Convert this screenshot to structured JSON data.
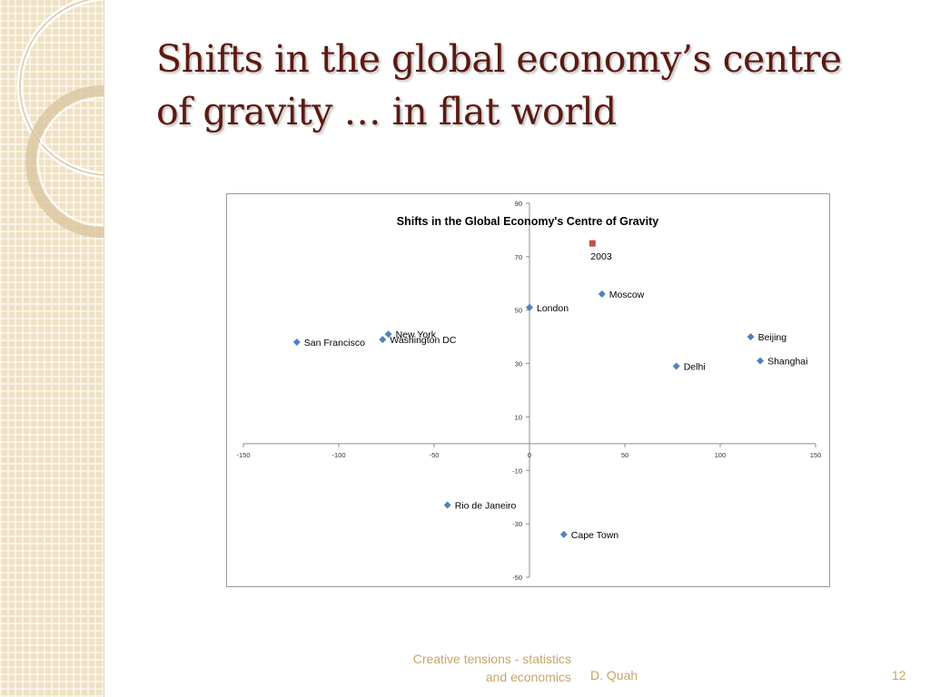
{
  "slide": {
    "title_line1": "Shifts in the global economy’s centre",
    "title_line2": "of gravity … in flat world",
    "footer_line1": "Creative tensions - statistics",
    "footer_line2": "and economics",
    "footer_author": "D. Quah",
    "page_number": "12"
  },
  "colors": {
    "title": "#5a1a12",
    "city_marker": "#4f81bd",
    "centre_marker": "#c0504d",
    "footer": "#c9a46a",
    "side_strip": "#efe1c2"
  },
  "chart_data": {
    "type": "scatter",
    "title": "Shifts in the Global Economy's Centre of Gravity",
    "xlim": [
      -150,
      150
    ],
    "ylim": [
      -50,
      90
    ],
    "x_ticks": [
      -150,
      -100,
      -50,
      0,
      50,
      100,
      150
    ],
    "y_ticks": [
      90,
      70,
      50,
      30,
      10,
      -10,
      -30,
      -50
    ],
    "grid": false,
    "series": [
      {
        "marker": "diamond",
        "color": "#4f81bd",
        "points": [
          {
            "label": "San Francisco",
            "x": -122,
            "y": 38
          },
          {
            "label": "New York",
            "x": -74,
            "y": 41
          },
          {
            "label": "Washington DC",
            "x": -77,
            "y": 39
          },
          {
            "label": "London",
            "x": 0,
            "y": 51
          },
          {
            "label": "Moscow",
            "x": 38,
            "y": 56
          },
          {
            "label": "Beijing",
            "x": 116,
            "y": 40
          },
          {
            "label": "Shanghai",
            "x": 121,
            "y": 31
          },
          {
            "label": "Delhi",
            "x": 77,
            "y": 29
          },
          {
            "label": "Rio de Janeiro",
            "x": -43,
            "y": -23
          },
          {
            "label": "Cape Town",
            "x": 18,
            "y": -34
          }
        ]
      },
      {
        "marker": "square",
        "color": "#c0504d",
        "points": [
          {
            "label": "2003",
            "x": 33,
            "y": 75
          }
        ]
      }
    ]
  }
}
